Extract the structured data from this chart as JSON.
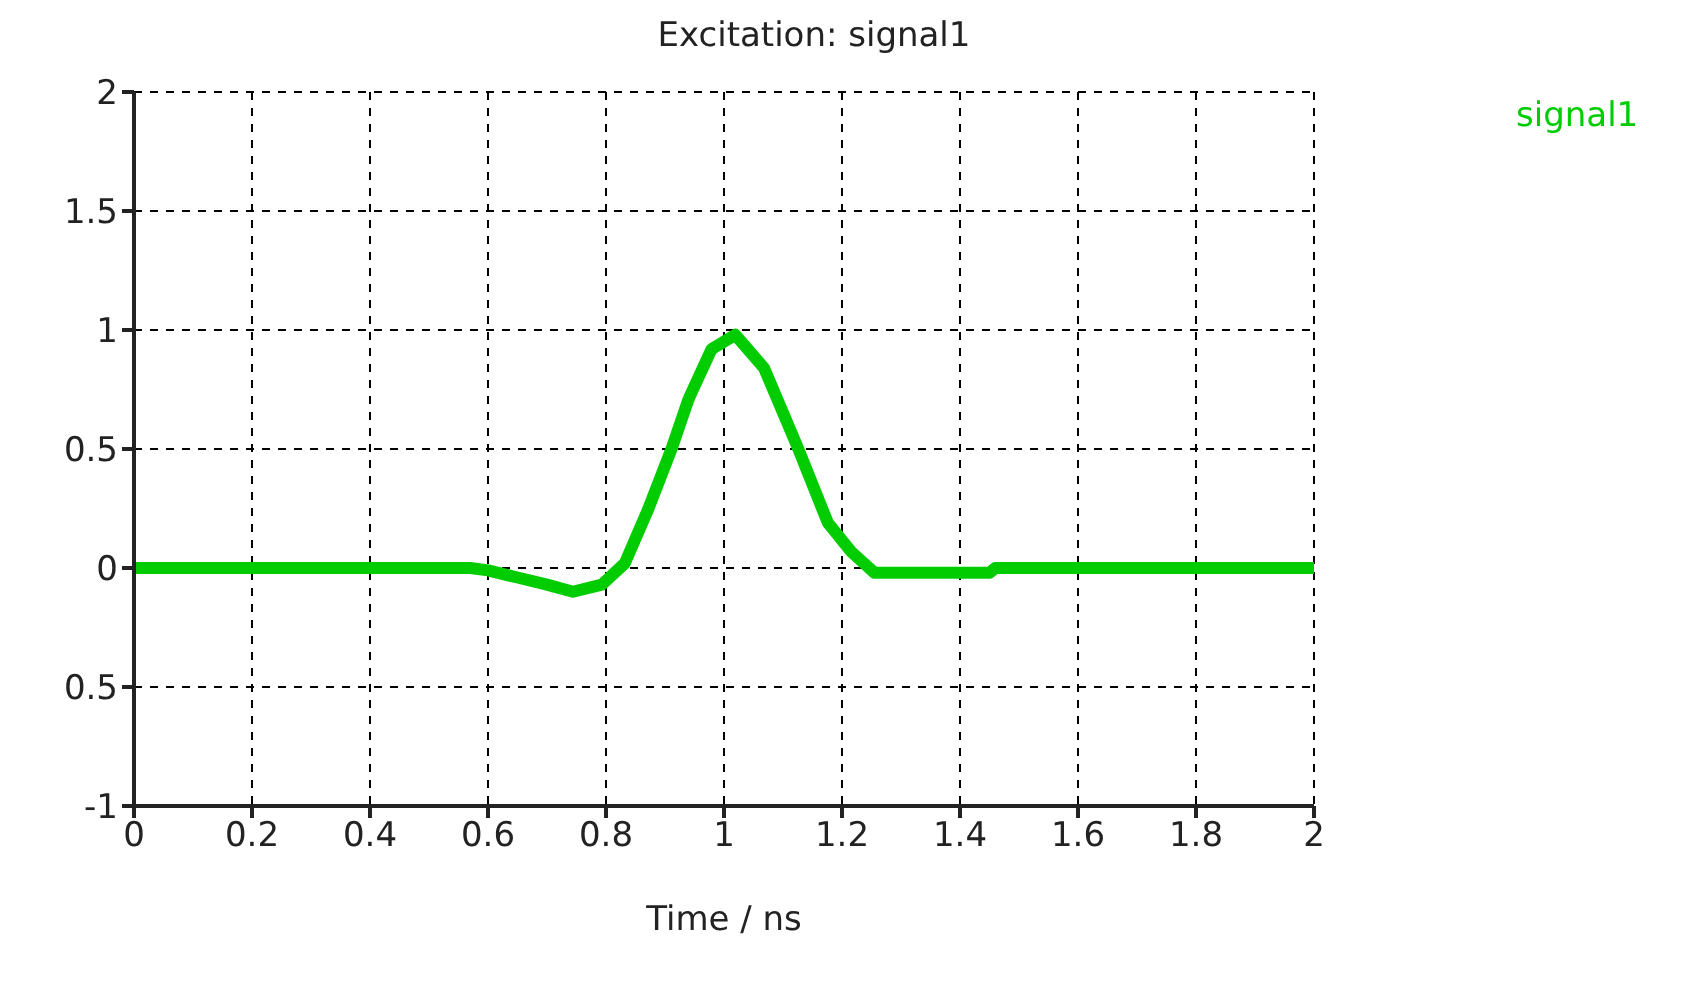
{
  "chart_data": {
    "type": "line",
    "title": "Excitation: signal1",
    "xlabel": "Time / ns",
    "xlim": [
      0,
      2
    ],
    "xticks": [
      0,
      0.2,
      0.4,
      0.6,
      0.8,
      1,
      1.2,
      1.4,
      1.6,
      1.8,
      2
    ],
    "ylim": [
      -1,
      2
    ],
    "yticks": [
      -1,
      {
        "value": -0.5,
        "label": "0.5"
      },
      0,
      0.5,
      1,
      1.5,
      2
    ],
    "grid": true,
    "legend": "top right",
    "marker": "none",
    "line_style": "solid",
    "series": [
      {
        "name": "signal1",
        "color": "#00cc00",
        "x": [
          0,
          0.2,
          0.4,
          0.57,
          0.6,
          0.65,
          0.7,
          0.744,
          0.793,
          0.832,
          0.872,
          0.911,
          0.94,
          0.979,
          1.019,
          1.068,
          1.126,
          1.176,
          1.215,
          1.255,
          1.3,
          1.45,
          1.46,
          1.6,
          1.8,
          2
        ],
        "values": [
          0,
          0,
          0,
          0,
          -0.01,
          -0.04,
          -0.07,
          -0.1,
          -0.07,
          0.02,
          0.25,
          0.5,
          0.71,
          0.92,
          0.98,
          0.84,
          0.5,
          0.19,
          0.07,
          -0.02,
          -0.02,
          -0.02,
          0,
          0,
          0,
          0
        ]
      }
    ]
  }
}
